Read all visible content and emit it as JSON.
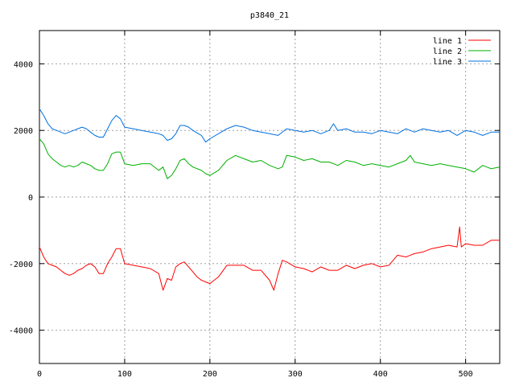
{
  "chart_data": {
    "type": "line",
    "title": "p3840_21",
    "xlabel": "",
    "ylabel": "",
    "xlim": [
      0,
      540
    ],
    "ylim": [
      -5000,
      5000
    ],
    "xticks": [
      0,
      100,
      200,
      300,
      400,
      500
    ],
    "yticks": [
      -4000,
      -2000,
      0,
      2000,
      4000
    ],
    "grid": true,
    "legend_position": "top-right",
    "series": [
      {
        "name": "line 1",
        "color": "#ff0000",
        "x": [
          0,
          5,
          10,
          15,
          20,
          25,
          30,
          35,
          40,
          45,
          50,
          55,
          60,
          65,
          70,
          75,
          80,
          85,
          90,
          95,
          100,
          110,
          120,
          130,
          140,
          145,
          150,
          155,
          160,
          165,
          170,
          175,
          180,
          185,
          190,
          195,
          200,
          210,
          220,
          230,
          240,
          250,
          260,
          270,
          275,
          280,
          285,
          290,
          300,
          310,
          320,
          330,
          340,
          350,
          360,
          370,
          380,
          390,
          400,
          410,
          420,
          430,
          440,
          450,
          460,
          470,
          480,
          490,
          493,
          495,
          500,
          510,
          520,
          530,
          540
        ],
        "values": [
          -1500,
          -1800,
          -2000,
          -2050,
          -2100,
          -2200,
          -2300,
          -2350,
          -2300,
          -2200,
          -2150,
          -2050,
          -2000,
          -2100,
          -2300,
          -2300,
          -2000,
          -1800,
          -1550,
          -1550,
          -2000,
          -2050,
          -2100,
          -2150,
          -2300,
          -2800,
          -2450,
          -2500,
          -2100,
          -2000,
          -1950,
          -2100,
          -2250,
          -2400,
          -2500,
          -2550,
          -2600,
          -2400,
          -2050,
          -2050,
          -2050,
          -2200,
          -2200,
          -2500,
          -2800,
          -2300,
          -1900,
          -1950,
          -2100,
          -2150,
          -2250,
          -2100,
          -2200,
          -2200,
          -2050,
          -2150,
          -2050,
          -2000,
          -2100,
          -2050,
          -1750,
          -1800,
          -1700,
          -1650,
          -1550,
          -1500,
          -1450,
          -1500,
          -900,
          -1500,
          -1400,
          -1450,
          -1450,
          -1300,
          -1300
        ]
      },
      {
        "name": "line 2",
        "color": "#00b000",
        "x": [
          0,
          5,
          10,
          15,
          20,
          25,
          30,
          35,
          40,
          45,
          50,
          55,
          60,
          65,
          70,
          75,
          80,
          85,
          90,
          95,
          100,
          110,
          120,
          130,
          140,
          145,
          150,
          155,
          160,
          165,
          170,
          175,
          180,
          190,
          195,
          200,
          210,
          220,
          230,
          240,
          250,
          260,
          270,
          280,
          285,
          290,
          300,
          310,
          320,
          330,
          340,
          350,
          360,
          370,
          380,
          390,
          400,
          410,
          420,
          430,
          435,
          440,
          450,
          460,
          470,
          480,
          490,
          500,
          510,
          520,
          530,
          540
        ],
        "values": [
          1750,
          1600,
          1300,
          1150,
          1050,
          950,
          900,
          950,
          900,
          950,
          1050,
          1000,
          950,
          850,
          800,
          800,
          1000,
          1300,
          1350,
          1350,
          1000,
          950,
          1000,
          1000,
          800,
          900,
          550,
          650,
          850,
          1100,
          1150,
          1000,
          900,
          800,
          700,
          650,
          800,
          1100,
          1250,
          1150,
          1050,
          1100,
          950,
          850,
          900,
          1250,
          1200,
          1100,
          1150,
          1050,
          1050,
          950,
          1100,
          1050,
          950,
          1000,
          950,
          900,
          1000,
          1100,
          1250,
          1050,
          1000,
          950,
          1000,
          950,
          900,
          850,
          750,
          950,
          850,
          900
        ]
      },
      {
        "name": "line 3",
        "color": "#0070e0",
        "x": [
          0,
          5,
          10,
          15,
          20,
          25,
          30,
          35,
          40,
          45,
          50,
          55,
          60,
          65,
          70,
          75,
          80,
          85,
          90,
          95,
          100,
          110,
          120,
          130,
          140,
          145,
          150,
          155,
          160,
          165,
          170,
          175,
          180,
          190,
          195,
          200,
          210,
          220,
          230,
          240,
          250,
          260,
          270,
          280,
          290,
          300,
          310,
          320,
          330,
          340,
          345,
          350,
          360,
          370,
          380,
          390,
          400,
          410,
          420,
          430,
          440,
          450,
          460,
          470,
          480,
          490,
          500,
          510,
          520,
          530,
          540
        ],
        "values": [
          2650,
          2450,
          2200,
          2050,
          2000,
          1950,
          1900,
          1950,
          2000,
          2050,
          2100,
          2050,
          1950,
          1850,
          1800,
          1800,
          2050,
          2300,
          2450,
          2350,
          2100,
          2050,
          2000,
          1950,
          1900,
          1850,
          1700,
          1750,
          1900,
          2150,
          2150,
          2100,
          2000,
          1850,
          1650,
          1750,
          1900,
          2050,
          2150,
          2100,
          2000,
          1950,
          1900,
          1850,
          2050,
          2000,
          1950,
          2000,
          1900,
          2000,
          2200,
          2000,
          2050,
          1950,
          1950,
          1900,
          2000,
          1950,
          1900,
          2050,
          1950,
          2050,
          2000,
          1950,
          2000,
          1850,
          2000,
          1950,
          1850,
          1950,
          1950
        ]
      }
    ]
  }
}
